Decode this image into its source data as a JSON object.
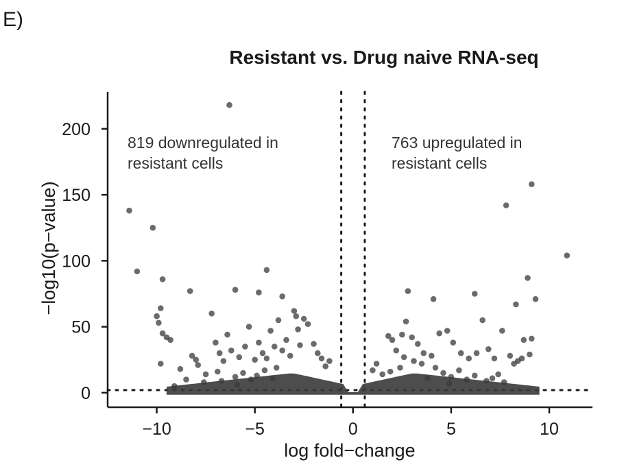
{
  "panel_label": "E)",
  "chart_data": {
    "type": "scatter",
    "title": "Resistant vs. Drug naive RNA-seq",
    "xlabel": "log fold−change",
    "ylabel": "−log10(p−value)",
    "xlim": [
      -12.5,
      12.2
    ],
    "ylim": [
      -11,
      228
    ],
    "xticks": [
      -10,
      -5,
      0,
      5,
      10
    ],
    "xtick_labels": [
      "−10",
      "−5",
      "0",
      "5",
      "10"
    ],
    "yticks": [
      0,
      50,
      100,
      150,
      200
    ],
    "ytick_labels": [
      "0",
      "50",
      "100",
      "150",
      "200"
    ],
    "grid": false,
    "legend": "none",
    "thresholds": {
      "x": [
        -0.6,
        0.6
      ],
      "y": 2
    },
    "point_color": "#3a3a3a",
    "annotations": [
      {
        "lines": [
          "819 downregulated in",
          "resistant cells"
        ],
        "side": "left"
      },
      {
        "lines": [
          "763 upregulated in",
          "resistant cells"
        ],
        "side": "right"
      }
    ],
    "points": [
      [
        -6.3,
        218
      ],
      [
        -11.4,
        138
      ],
      [
        -10.2,
        125
      ],
      [
        -11.0,
        92
      ],
      [
        -9.7,
        86
      ],
      [
        -8.3,
        77
      ],
      [
        -6.0,
        78
      ],
      [
        -4.8,
        76
      ],
      [
        -4.4,
        93
      ],
      [
        -3.6,
        73
      ],
      [
        -9.8,
        64
      ],
      [
        -10.0,
        58
      ],
      [
        -9.9,
        53
      ],
      [
        -9.7,
        45
      ],
      [
        -9.5,
        42
      ],
      [
        -9.3,
        40
      ],
      [
        -9.8,
        22
      ],
      [
        -8.2,
        28
      ],
      [
        -8.0,
        25
      ],
      [
        -7.9,
        21
      ],
      [
        -7.2,
        60
      ],
      [
        -7.0,
        38
      ],
      [
        -6.8,
        30
      ],
      [
        -6.6,
        24
      ],
      [
        -6.4,
        44
      ],
      [
        -6.2,
        32
      ],
      [
        -5.8,
        27
      ],
      [
        -5.5,
        35
      ],
      [
        -5.3,
        50
      ],
      [
        -5.0,
        25
      ],
      [
        -4.8,
        38
      ],
      [
        -4.6,
        30
      ],
      [
        -4.4,
        26
      ],
      [
        -4.2,
        47
      ],
      [
        -4.0,
        35
      ],
      [
        -3.8,
        55
      ],
      [
        -3.6,
        32
      ],
      [
        -3.4,
        40
      ],
      [
        -3.2,
        28
      ],
      [
        -3.0,
        62
      ],
      [
        -2.9,
        58
      ],
      [
        -2.8,
        48
      ],
      [
        -2.7,
        36
      ],
      [
        -2.5,
        56
      ],
      [
        -2.3,
        52
      ],
      [
        -2.0,
        37
      ],
      [
        -1.8,
        30
      ],
      [
        -1.6,
        26
      ],
      [
        -1.4,
        20
      ],
      [
        -1.2,
        24
      ],
      [
        -8.8,
        18
      ],
      [
        -7.5,
        14
      ],
      [
        -6.9,
        16
      ],
      [
        -6.0,
        12
      ],
      [
        -5.6,
        15
      ],
      [
        -5.2,
        10
      ],
      [
        -4.9,
        13
      ],
      [
        -4.5,
        17
      ],
      [
        -4.1,
        11
      ],
      [
        -3.9,
        19
      ],
      [
        -7.6,
        8
      ],
      [
        -6.7,
        9
      ],
      [
        -5.9,
        6
      ],
      [
        -8.5,
        10
      ],
      [
        -9.1,
        5
      ],
      [
        9.1,
        158
      ],
      [
        7.8,
        142
      ],
      [
        10.9,
        104
      ],
      [
        8.9,
        87
      ],
      [
        9.3,
        71
      ],
      [
        8.3,
        67
      ],
      [
        6.2,
        75
      ],
      [
        4.1,
        71
      ],
      [
        2.8,
        77
      ],
      [
        2.7,
        54
      ],
      [
        2.5,
        44
      ],
      [
        1.8,
        43
      ],
      [
        2.0,
        40
      ],
      [
        3.0,
        42
      ],
      [
        3.3,
        37
      ],
      [
        3.6,
        30
      ],
      [
        4.0,
        28
      ],
      [
        4.4,
        45
      ],
      [
        4.8,
        47
      ],
      [
        5.1,
        38
      ],
      [
        5.5,
        30
      ],
      [
        5.9,
        26
      ],
      [
        6.3,
        30
      ],
      [
        6.6,
        55
      ],
      [
        6.9,
        33
      ],
      [
        7.2,
        26
      ],
      [
        7.6,
        47
      ],
      [
        8.0,
        28
      ],
      [
        8.4,
        24
      ],
      [
        8.7,
        40
      ],
      [
        9.1,
        41
      ],
      [
        9.0,
        29
      ],
      [
        8.6,
        26
      ],
      [
        8.2,
        22
      ],
      [
        7.4,
        14
      ],
      [
        2.2,
        32
      ],
      [
        2.6,
        27
      ],
      [
        3.1,
        24
      ],
      [
        3.5,
        22
      ],
      [
        4.2,
        19
      ],
      [
        4.6,
        15
      ],
      [
        5.0,
        12
      ],
      [
        5.4,
        17
      ],
      [
        5.8,
        10
      ],
      [
        6.2,
        13
      ],
      [
        6.8,
        9
      ],
      [
        7.1,
        11
      ],
      [
        7.7,
        8
      ],
      [
        2.4,
        19
      ],
      [
        1.9,
        16
      ],
      [
        1.5,
        14
      ],
      [
        1.2,
        22
      ],
      [
        1.0,
        17
      ],
      [
        3.8,
        11
      ],
      [
        4.9,
        7
      ]
    ]
  }
}
